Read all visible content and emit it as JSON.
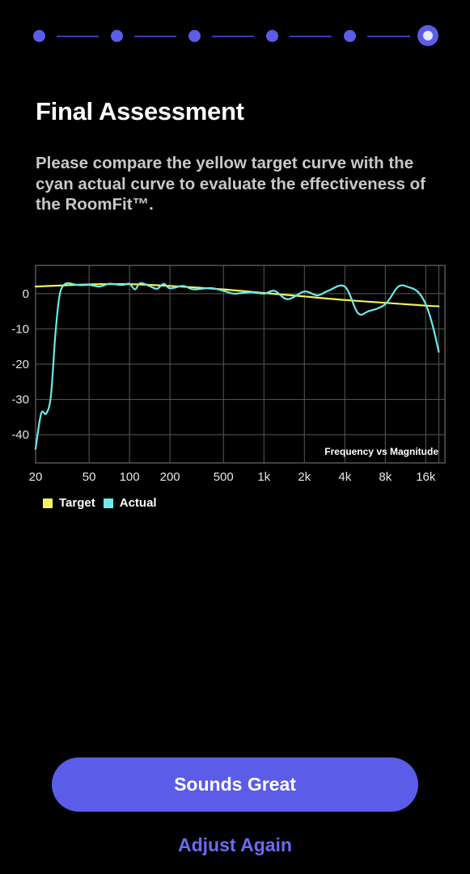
{
  "stepper": {
    "total_steps": 6,
    "current_step": 6,
    "accent_color": "#5b5ce8"
  },
  "header": {
    "title": "Final Assessment",
    "subtitle": "Please compare the yellow target curve with the cyan actual curve to evaluate the effectiveness of the RoomFit™."
  },
  "chart_data": {
    "type": "line",
    "title": "",
    "annotation": "Frequency vs Magnitude",
    "xlabel": "",
    "ylabel": "",
    "x_scale": "log",
    "x_tick_labels": [
      "20",
      "50",
      "100",
      "200",
      "500",
      "1k",
      "2k",
      "4k",
      "8k",
      "16k"
    ],
    "y_tick_labels": [
      "0",
      "-10",
      "-20",
      "-30",
      "-40"
    ],
    "y_ticks": [
      0,
      -10,
      -20,
      -30,
      -40
    ],
    "ylim": [
      -48,
      8
    ],
    "grid": true,
    "legend_position": "bottom-left",
    "series": [
      {
        "name": "Target",
        "color": "#f2f25a",
        "x": [
          "20",
          "50",
          "100",
          "200",
          "500",
          "1k",
          "2k",
          "4k",
          "8k",
          "16k",
          "20k"
        ],
        "values": [
          2.0,
          2.6,
          2.7,
          2.2,
          1.2,
          0.2,
          -0.8,
          -1.8,
          -2.6,
          -3.4,
          -3.6
        ]
      },
      {
        "name": "Actual",
        "color": "#6de9e9",
        "x": [
          "20",
          "22",
          "24",
          "26",
          "28",
          "30",
          "32",
          "35",
          "40",
          "45",
          "50",
          "60",
          "70",
          "80",
          "90",
          "100",
          "110",
          "120",
          "140",
          "160",
          "180",
          "200",
          "250",
          "300",
          "400",
          "500",
          "600",
          "800",
          "1k",
          "1.2k",
          "1.5k",
          "2k",
          "2.5k",
          "3k",
          "4k",
          "5k",
          "6k",
          "8k",
          "10k",
          "12k",
          "14k",
          "16k",
          "18k",
          "20k"
        ],
        "values": [
          -44,
          -34,
          -34,
          -29,
          -12,
          -1,
          2.2,
          3.0,
          2.5,
          2.4,
          2.5,
          2.0,
          2.8,
          2.6,
          2.5,
          2.8,
          1.2,
          3.0,
          2.2,
          1.4,
          2.8,
          1.5,
          2.2,
          1.2,
          1.6,
          0.8,
          0.0,
          0.4,
          0.0,
          0.8,
          -1.6,
          0.6,
          -0.5,
          0.8,
          2.0,
          -5.5,
          -5.0,
          -3.0,
          2.0,
          1.8,
          0.5,
          -3.0,
          -9.0,
          -16.5
        ]
      }
    ]
  },
  "legend": {
    "target_label": "Target",
    "actual_label": "Actual"
  },
  "actions": {
    "primary_label": "Sounds Great",
    "secondary_label": "Adjust Again"
  }
}
